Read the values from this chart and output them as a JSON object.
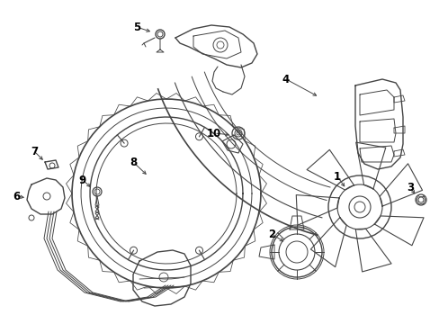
{
  "background_color": "#ffffff",
  "line_color": "#444444",
  "label_color": "#000000",
  "fig_width": 4.89,
  "fig_height": 3.6,
  "dpi": 100,
  "xlim": [
    0,
    489
  ],
  "ylim": [
    0,
    360
  ]
}
